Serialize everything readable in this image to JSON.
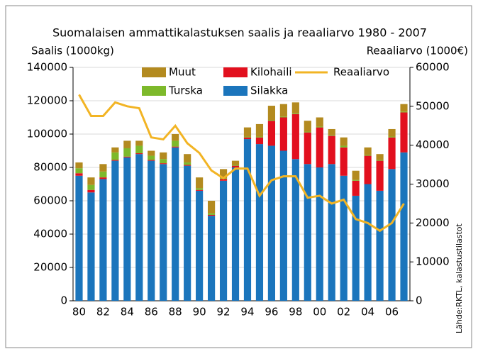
{
  "chart_data": {
    "type": "bar",
    "title": "Suomalaisen ammattikalastuksen saalis ja reaaliarvo 1980 - 2007",
    "y_label": "Saalis (1000kg)",
    "y2_label": "Reaaliarvo (1000€)",
    "source": "Lähde:RKTL, kalastustilastot",
    "stacked": true,
    "categories": [
      "80",
      null,
      "82",
      null,
      "84",
      null,
      "86",
      null,
      "88",
      null,
      "90",
      null,
      "92",
      null,
      "94",
      null,
      "96",
      null,
      "98",
      null,
      "00",
      null,
      "02",
      null,
      "04",
      null,
      "06",
      null
    ],
    "series": [
      {
        "name": "Silakka",
        "color": "#1b75bc",
        "values": [
          75000,
          65000,
          73000,
          84000,
          86000,
          88000,
          84000,
          82000,
          92000,
          81000,
          66000,
          51000,
          72000,
          80000,
          97000,
          94000,
          93000,
          90000,
          85000,
          82000,
          80000,
          82000,
          75000,
          63000,
          70000,
          66000,
          79000,
          89000
        ]
      },
      {
        "name": "Kilohaili",
        "color": "#e2101e",
        "values": [
          1500,
          1500,
          1000,
          500,
          500,
          500,
          500,
          500,
          500,
          500,
          500,
          500,
          1000,
          1000,
          1000,
          4000,
          15000,
          20000,
          27000,
          19000,
          24000,
          17000,
          17000,
          9000,
          17000,
          18000,
          19000,
          24000
        ]
      },
      {
        "name": "Turska",
        "color": "#7db92b",
        "values": [
          3000,
          3000,
          3500,
          4500,
          5000,
          4500,
          2500,
          2500,
          3500,
          1500,
          1000,
          1000,
          500,
          500,
          500,
          500,
          500,
          500,
          500,
          500,
          500,
          500,
          1000,
          500,
          500,
          500,
          500,
          500
        ]
      },
      {
        "name": "Muut",
        "color": "#b38a1f",
        "values": [
          3500,
          4500,
          4500,
          3000,
          4500,
          3000,
          3000,
          4000,
          4000,
          5000,
          6500,
          7500,
          5500,
          2500,
          5500,
          7500,
          8500,
          7500,
          6500,
          6500,
          5500,
          3500,
          5000,
          5500,
          4500,
          3500,
          4500,
          4500
        ]
      },
      {
        "name": "Reaaliarvo",
        "type": "line",
        "axis": "y2",
        "color": "#f2b424",
        "values": [
          53000,
          47500,
          47500,
          51000,
          50000,
          49500,
          42000,
          41500,
          45000,
          40500,
          38000,
          33500,
          31500,
          34000,
          34000,
          27000,
          31000,
          32000,
          32000,
          26500,
          27000,
          25000,
          26000,
          21000,
          20000,
          18000,
          20000,
          25000
        ]
      }
    ],
    "ylim": [
      0,
      140000
    ],
    "yticks": [
      0,
      20000,
      40000,
      60000,
      80000,
      100000,
      120000,
      140000
    ],
    "y2lim": [
      0,
      60000
    ],
    "y2ticks": [
      0,
      10000,
      20000,
      30000,
      40000,
      50000,
      60000
    ],
    "grid": true
  }
}
